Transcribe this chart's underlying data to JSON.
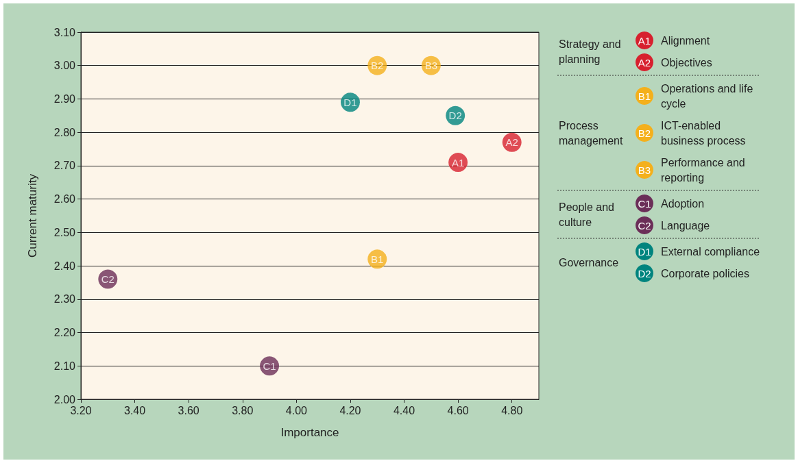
{
  "chart_data": {
    "type": "scatter",
    "xlabel": "Importance",
    "ylabel": "Current maturity",
    "xlim": [
      3.2,
      4.9
    ],
    "ylim": [
      2.0,
      3.1
    ],
    "xticks": [
      {
        "value": 3.2,
        "label": "3.20"
      },
      {
        "value": 3.4,
        "label": "3.40"
      },
      {
        "value": 3.6,
        "label": "3.60"
      },
      {
        "value": 3.8,
        "label": "3.80"
      },
      {
        "value": 4.0,
        "label": "4.00"
      },
      {
        "value": 4.2,
        "label": "4.20"
      },
      {
        "value": 4.4,
        "label": "4.40"
      },
      {
        "value": 4.6,
        "label": "4.60"
      },
      {
        "value": 4.8,
        "label": "4.80"
      }
    ],
    "yticks": [
      {
        "value": 2.0,
        "label": "2.00"
      },
      {
        "value": 2.1,
        "label": "2.10"
      },
      {
        "value": 2.2,
        "label": "2.20"
      },
      {
        "value": 2.3,
        "label": "2.30"
      },
      {
        "value": 2.4,
        "label": "2.40"
      },
      {
        "value": 2.5,
        "label": "2.50"
      },
      {
        "value": 2.6,
        "label": "2.60"
      },
      {
        "value": 2.7,
        "label": "2.70"
      },
      {
        "value": 2.8,
        "label": "2.80"
      },
      {
        "value": 2.9,
        "label": "2.90"
      },
      {
        "value": 3.0,
        "label": "3.00"
      },
      {
        "value": 3.1,
        "label": "3.10"
      }
    ],
    "grid": "y",
    "legend": "right",
    "marker": "circle",
    "annotations": [
      "Strategy and planning",
      "Process management",
      "People and culture",
      "Governance"
    ],
    "series": [
      {
        "name": "Alignment",
        "color": "#d7202e",
        "x": [
          4.6
        ],
        "values": [
          2.71
        ],
        "value_labels": [
          "A1"
        ]
      },
      {
        "name": "Objectives",
        "color": "#d7202e",
        "x": [
          4.8
        ],
        "values": [
          2.77
        ],
        "value_labels": [
          "A2"
        ]
      },
      {
        "name": "Operations and life cycle",
        "color": "#f4b01c",
        "x": [
          4.3
        ],
        "values": [
          2.42
        ],
        "value_labels": [
          "B1"
        ]
      },
      {
        "name": "ICT-enabled business process",
        "color": "#f4b01c",
        "x": [
          4.3
        ],
        "values": [
          3.0
        ],
        "value_labels": [
          "B2"
        ]
      },
      {
        "name": "Performance and reporting",
        "color": "#f4b01c",
        "x": [
          4.5
        ],
        "values": [
          3.0
        ],
        "value_labels": [
          "B3"
        ]
      },
      {
        "name": "Adoption",
        "color": "#6b2e58",
        "x": [
          3.9
        ],
        "values": [
          2.1
        ],
        "value_labels": [
          "C1"
        ]
      },
      {
        "name": "Language",
        "color": "#6b2e58",
        "x": [
          3.3
        ],
        "values": [
          2.36
        ],
        "value_labels": [
          "C2"
        ]
      },
      {
        "name": "External compliance",
        "color": "#00847e",
        "x": [
          4.2
        ],
        "values": [
          2.89
        ],
        "value_labels": [
          "D1"
        ]
      },
      {
        "name": "Corporate policies",
        "color": "#00847e",
        "x": [
          4.59
        ],
        "values": [
          2.85
        ],
        "value_labels": [
          "D2"
        ]
      }
    ]
  }
}
